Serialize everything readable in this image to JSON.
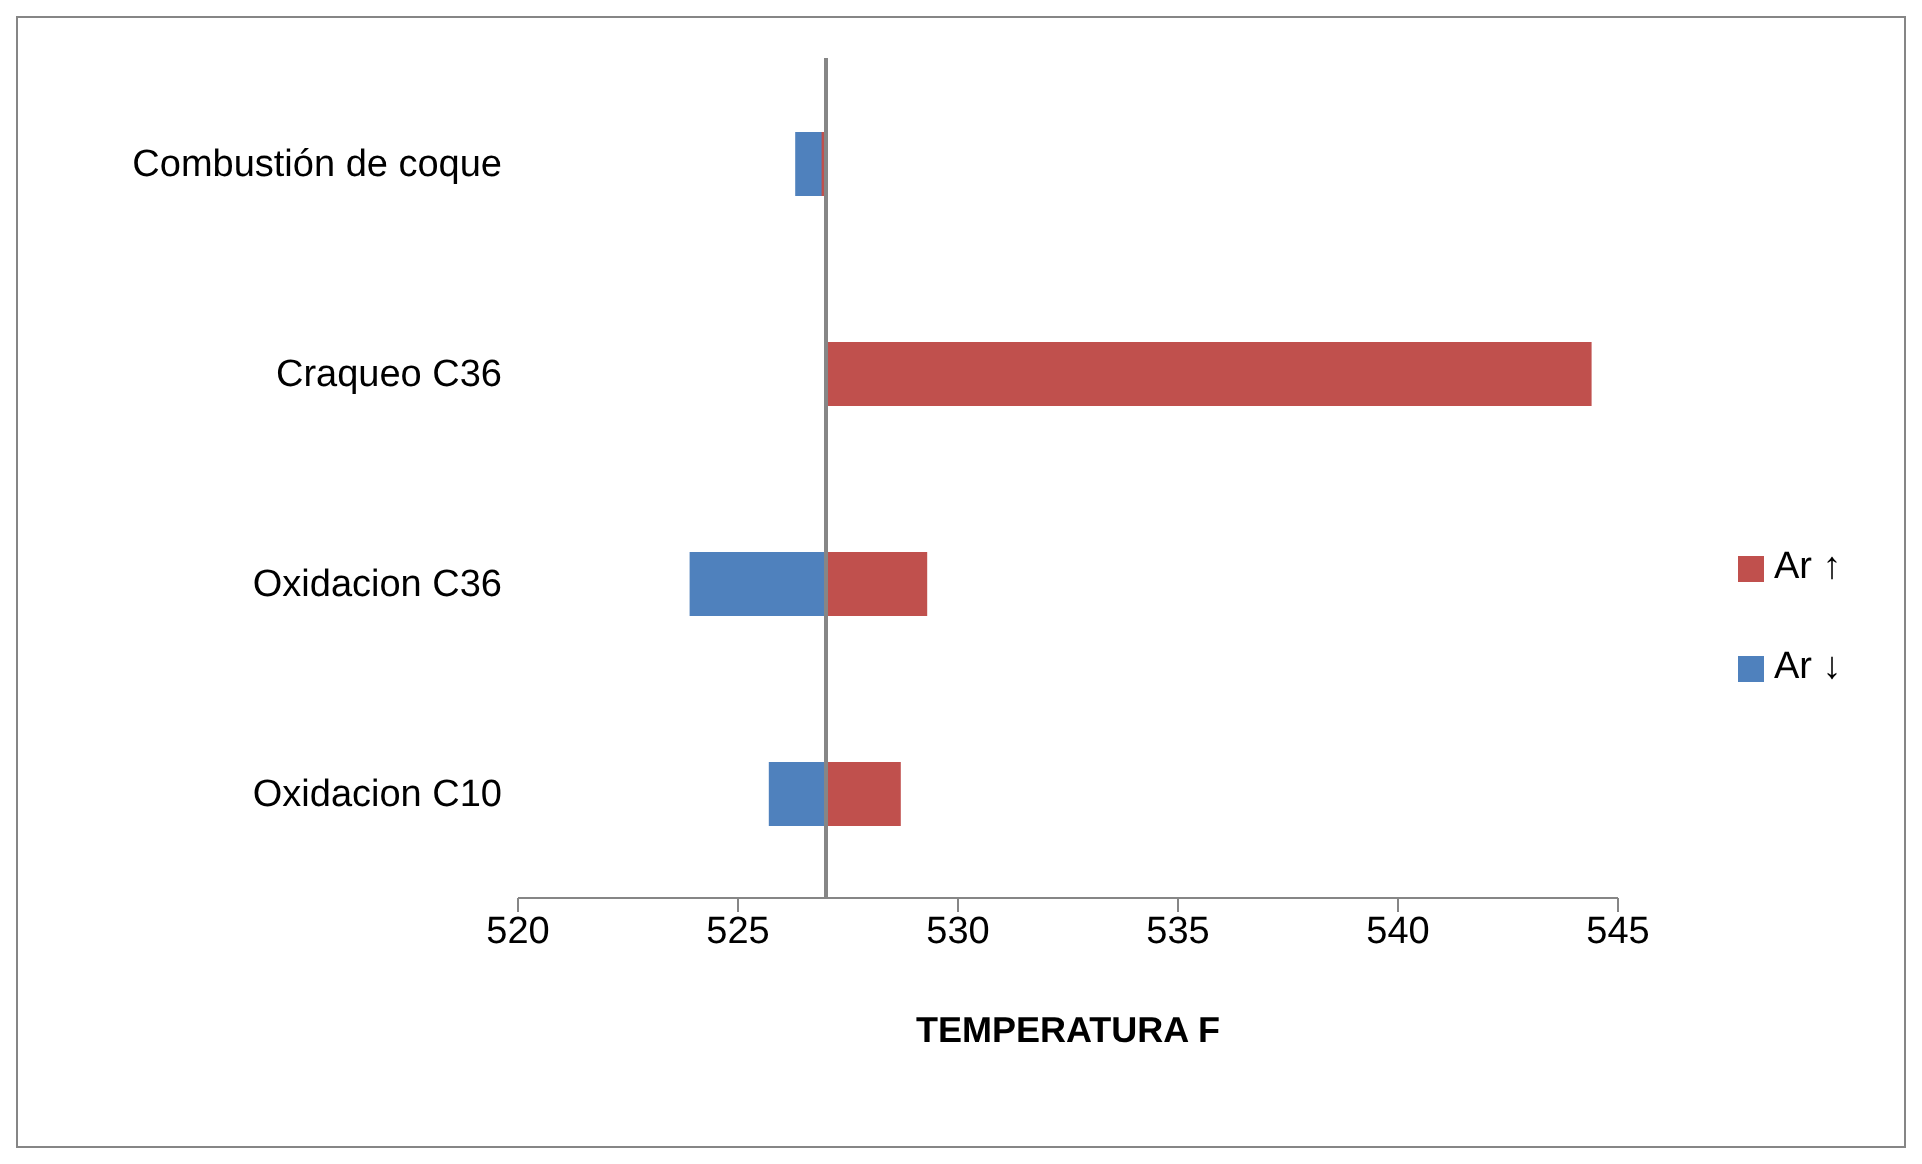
{
  "chart_data": {
    "type": "bar",
    "orientation": "horizontal",
    "xlabel": "TEMPERATURA F",
    "categories": [
      "Combustión de coque",
      "Craqueo C36",
      "Oxidacion C36",
      "Oxidacion C10"
    ],
    "series": [
      {
        "name": "Ar ↑",
        "color": "#c0504d",
        "base": [
          527,
          527,
          527,
          527
        ],
        "values": [
          -0.1,
          17.4,
          2.3,
          1.7
        ]
      },
      {
        "name": "Ar ↓",
        "color": "#4f81bd",
        "base": [
          527,
          null,
          527,
          527
        ],
        "values": [
          -0.7,
          null,
          -3.1,
          -1.3
        ]
      }
    ],
    "xlim": [
      520,
      545
    ],
    "xticks": [
      520,
      525,
      530,
      535,
      540,
      545
    ],
    "ref_lines": [
      {
        "axis": "x",
        "value": 527,
        "color": "#868686"
      }
    ],
    "grid": false,
    "legend": "right"
  }
}
